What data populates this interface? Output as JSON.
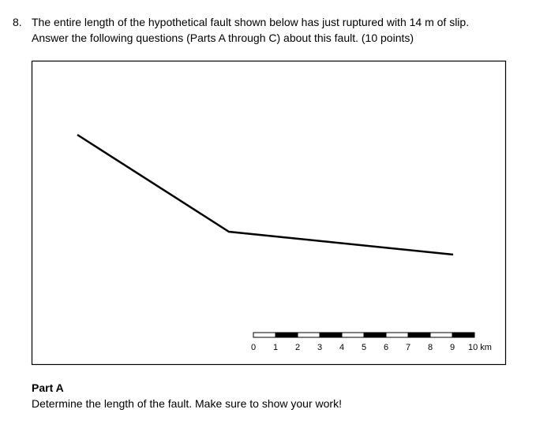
{
  "question": {
    "number": "8.",
    "lines": [
      "The entire length of the hypothetical fault shown below has just ruptured with 14 m of slip.",
      "Answer the following questions (Parts A through C) about this fault. (10 points)"
    ]
  },
  "figure": {
    "scale_labels": [
      "0",
      "1",
      "2",
      "3",
      "4",
      "5",
      "6",
      "7",
      "8",
      "9",
      "10 km"
    ]
  },
  "part_a": {
    "title": "Part A",
    "text": "Determine the length of the fault. Make sure to show your work!"
  }
}
